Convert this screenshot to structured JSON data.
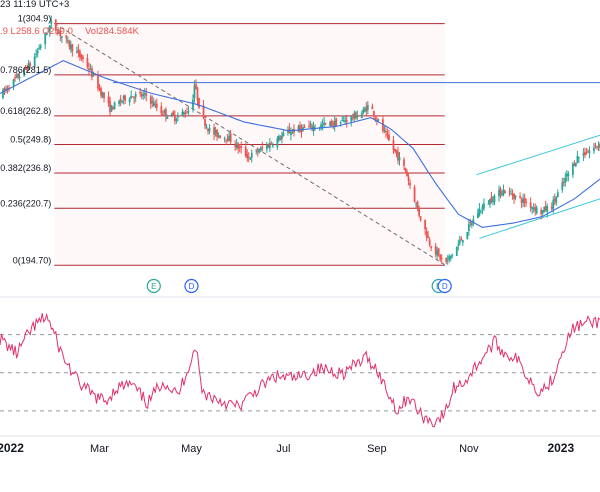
{
  "header": {
    "time": "23 11:19 UTC+3",
    "ohlc_fragment": ".9 L258.6 C259.0",
    "volume": "Vol284.584K"
  },
  "colors": {
    "up": "#26a69a",
    "down": "#ef5350",
    "ma": "#3f6fe0",
    "fib": "#b22833",
    "fib_band": "#f7d9dc",
    "channel": "#3cc8d8",
    "trendline": "#7a6a6a",
    "rsi": "#e0326a",
    "blue_line": "#3f6fe0",
    "axis_text": "#131722"
  },
  "markers": [
    {
      "label": "E",
      "date": "2022-04-06",
      "color": "#26a69a"
    },
    {
      "label": "D",
      "date": "2022-05-01",
      "color": "#2962ff"
    },
    {
      "label": "E",
      "date": "2022-10-12",
      "color": "#26a69a"
    },
    {
      "label": "D",
      "date": "2022-10-16",
      "color": "#2962ff"
    }
  ],
  "chart_data": [
    {
      "type": "candlestick",
      "x_range": [
        "2021-12-25",
        "2023-01-27"
      ],
      "ylim": [
        188,
        312
      ],
      "fibonacci": [
        {
          "level": "1",
          "value": 304.9,
          "label": "1(304.9)"
        },
        {
          "level": "0.786",
          "value": 281.5,
          "label": "0.786(281.5)"
        },
        {
          "level": "0.618",
          "value": 262.8,
          "label": "0.618(262.8)"
        },
        {
          "level": "0.5",
          "value": 249.8,
          "label": "0.5(249.8)"
        },
        {
          "level": "0.382",
          "value": 236.8,
          "label": "0.382(236.8)"
        },
        {
          "level": "0.236",
          "value": 220.7,
          "label": "0.236(220.7)"
        },
        {
          "level": "0",
          "value": 194.7,
          "label": "0(194.70)"
        }
      ],
      "fib_range": [
        "2022-01-30",
        "2022-10-16"
      ],
      "horizontal_line": {
        "value": 278,
        "from": "2022-03-10"
      },
      "trendline": {
        "from": [
          "2022-01-30",
          305
        ],
        "to": [
          "2022-10-16",
          195
        ]
      },
      "channel": {
        "upper": [
          [
            "2022-11-06",
            236
          ],
          [
            "2023-01-27",
            254
          ]
        ],
        "lower": [
          [
            "2022-11-08",
            207
          ],
          [
            "2023-01-27",
            225
          ]
        ]
      },
      "price_anchors": [
        [
          "2021-12-25",
          272
        ],
        [
          "2022-01-05",
          280
        ],
        [
          "2022-01-15",
          287
        ],
        [
          "2022-01-28",
          305
        ],
        [
          "2022-02-08",
          296
        ],
        [
          "2022-02-20",
          287
        ],
        [
          "2022-03-01",
          275
        ],
        [
          "2022-03-08",
          266
        ],
        [
          "2022-03-20",
          272
        ],
        [
          "2022-04-01",
          272
        ],
        [
          "2022-04-10",
          265
        ],
        [
          "2022-04-20",
          262
        ],
        [
          "2022-05-01",
          266
        ],
        [
          "2022-05-03",
          277
        ],
        [
          "2022-05-08",
          262
        ],
        [
          "2022-05-14",
          255
        ],
        [
          "2022-05-25",
          253
        ],
        [
          "2022-06-08",
          244
        ],
        [
          "2022-06-22",
          250
        ],
        [
          "2022-07-06",
          256
        ],
        [
          "2022-07-22",
          258
        ],
        [
          "2022-08-08",
          260
        ],
        [
          "2022-08-22",
          264
        ],
        [
          "2022-08-27",
          268
        ],
        [
          "2022-09-02",
          260
        ],
        [
          "2022-09-10",
          250
        ],
        [
          "2022-09-20",
          238
        ],
        [
          "2022-09-29",
          218
        ],
        [
          "2022-10-06",
          205
        ],
        [
          "2022-10-16",
          195
        ],
        [
          "2022-10-24",
          203
        ],
        [
          "2022-11-01",
          212
        ],
        [
          "2022-11-08",
          220
        ],
        [
          "2022-11-16",
          225
        ],
        [
          "2022-11-24",
          229
        ],
        [
          "2022-12-02",
          226
        ],
        [
          "2022-12-12",
          222
        ],
        [
          "2022-12-19",
          219
        ],
        [
          "2022-12-26",
          222
        ],
        [
          "2023-01-04",
          234
        ],
        [
          "2023-01-12",
          244
        ],
        [
          "2023-01-20",
          247
        ],
        [
          "2023-01-27",
          250
        ]
      ],
      "moving_average_anchors": [
        [
          "2021-12-25",
          273
        ],
        [
          "2022-02-05",
          288
        ],
        [
          "2022-03-05",
          280
        ],
        [
          "2022-04-05",
          273
        ],
        [
          "2022-05-05",
          268
        ],
        [
          "2022-06-05",
          260
        ],
        [
          "2022-07-05",
          256
        ],
        [
          "2022-08-05",
          258
        ],
        [
          "2022-08-28",
          262
        ],
        [
          "2022-09-10",
          257
        ],
        [
          "2022-09-25",
          248
        ],
        [
          "2022-10-10",
          232
        ],
        [
          "2022-10-25",
          218
        ],
        [
          "2022-11-10",
          212
        ],
        [
          "2022-12-01",
          214
        ],
        [
          "2022-12-20",
          217
        ],
        [
          "2023-01-10",
          225
        ],
        [
          "2023-01-27",
          234
        ]
      ]
    },
    {
      "type": "line",
      "name": "",
      "x_range": [
        "2021-12-25",
        "2023-01-27"
      ],
      "ylim": [
        20,
        85
      ],
      "reference_lines": [
        70,
        50,
        30
      ],
      "anchors": [
        [
          "2021-12-25",
          68
        ],
        [
          "2022-01-05",
          60
        ],
        [
          "2022-01-15",
          73
        ],
        [
          "2022-01-25",
          80
        ],
        [
          "2022-02-05",
          58
        ],
        [
          "2022-02-15",
          45
        ],
        [
          "2022-02-25",
          38
        ],
        [
          "2022-03-05",
          35
        ],
        [
          "2022-03-12",
          42
        ],
        [
          "2022-03-22",
          44
        ],
        [
          "2022-04-02",
          34
        ],
        [
          "2022-04-12",
          46
        ],
        [
          "2022-04-22",
          38
        ],
        [
          "2022-05-04",
          64
        ],
        [
          "2022-05-08",
          40
        ],
        [
          "2022-05-18",
          36
        ],
        [
          "2022-06-01",
          32
        ],
        [
          "2022-06-12",
          40
        ],
        [
          "2022-06-25",
          48
        ],
        [
          "2022-07-10",
          47
        ],
        [
          "2022-07-25",
          52
        ],
        [
          "2022-08-10",
          50
        ],
        [
          "2022-08-25",
          58
        ],
        [
          "2022-09-01",
          52
        ],
        [
          "2022-09-08",
          40
        ],
        [
          "2022-09-15",
          30
        ],
        [
          "2022-09-22",
          38
        ],
        [
          "2022-09-30",
          28
        ],
        [
          "2022-10-08",
          24
        ],
        [
          "2022-10-16",
          28
        ],
        [
          "2022-10-22",
          42
        ],
        [
          "2022-10-30",
          46
        ],
        [
          "2022-11-08",
          56
        ],
        [
          "2022-11-18",
          66
        ],
        [
          "2022-11-25",
          60
        ],
        [
          "2022-12-02",
          58
        ],
        [
          "2022-12-10",
          48
        ],
        [
          "2022-12-18",
          40
        ],
        [
          "2022-12-26",
          46
        ],
        [
          "2023-01-03",
          64
        ],
        [
          "2023-01-10",
          74
        ],
        [
          "2023-01-18",
          76
        ],
        [
          "2023-01-27",
          77
        ]
      ]
    }
  ],
  "x_axis": {
    "ticks": [
      {
        "label": "2022",
        "date": "2022-01-01"
      },
      {
        "label": "Mar",
        "date": "2022-03-01"
      },
      {
        "label": "May",
        "date": "2022-05-01"
      },
      {
        "label": "Jul",
        "date": "2022-07-01"
      },
      {
        "label": "Sep",
        "date": "2022-09-01"
      },
      {
        "label": "Nov",
        "date": "2022-11-01"
      },
      {
        "label": "2023",
        "date": "2023-01-01"
      }
    ]
  }
}
